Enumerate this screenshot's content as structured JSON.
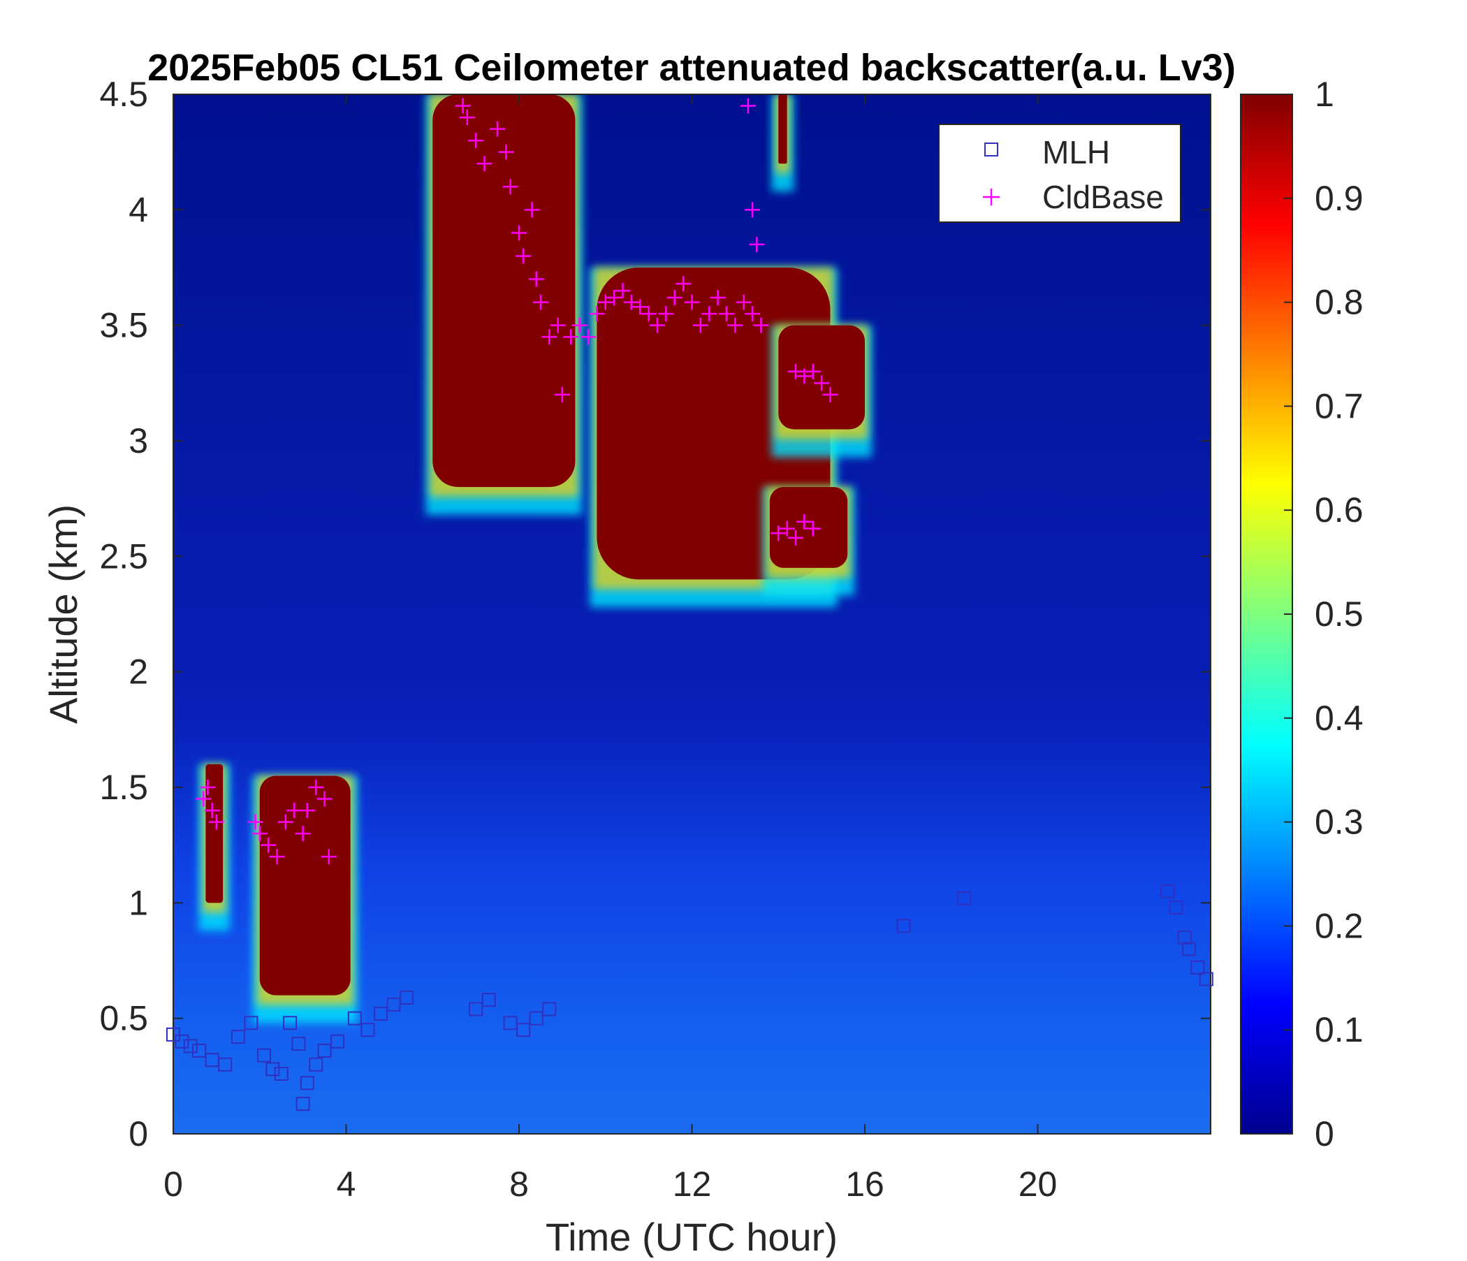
{
  "chart_data": {
    "type": "heatmap",
    "title": "2025Feb05 CL51 Ceilometer attenuated backscatter(a.u. Lv3)",
    "xlabel": "Time (UTC hour)",
    "ylabel": "Altitude (km)",
    "xlim": [
      0,
      24
    ],
    "ylim": [
      0,
      4.5
    ],
    "x_ticks": [
      "0",
      "4",
      "8",
      "12",
      "16",
      "20"
    ],
    "y_ticks": [
      "0",
      "0.5",
      "1",
      "1.5",
      "2",
      "2.5",
      "3",
      "3.5",
      "4",
      "4.5"
    ],
    "colorbar": {
      "range": [
        0,
        1
      ],
      "ticks": [
        "0",
        "0.1",
        "0.2",
        "0.3",
        "0.4",
        "0.5",
        "0.6",
        "0.7",
        "0.8",
        "0.9",
        "1"
      ],
      "colormap": "jet"
    },
    "legend": {
      "position": "top-right",
      "entries": [
        {
          "label": "MLH",
          "marker": "square",
          "color": "#3030c0"
        },
        {
          "label": "CldBase",
          "marker": "plus",
          "color": "#ff00ff"
        }
      ]
    },
    "grid": false,
    "backscatter_regions": [
      {
        "x": [
          0.75,
          1.15
        ],
        "y": [
          1.0,
          1.6
        ],
        "value": 1.0
      },
      {
        "x": [
          2.0,
          4.1
        ],
        "y": [
          0.6,
          1.55
        ],
        "value": 1.0
      },
      {
        "x": [
          6.0,
          9.3
        ],
        "y": [
          2.8,
          4.5
        ],
        "value": 1.0
      },
      {
        "x": [
          9.8,
          15.2
        ],
        "y": [
          2.4,
          3.75
        ],
        "value": 1.0
      },
      {
        "x": [
          13.8,
          15.6
        ],
        "y": [
          2.45,
          2.8
        ],
        "value": 1.0
      },
      {
        "x": [
          14.0,
          16.0
        ],
        "y": [
          3.05,
          3.5
        ],
        "value": 1.0
      },
      {
        "x": [
          14.0,
          14.2
        ],
        "y": [
          4.2,
          4.5
        ],
        "value": 1.0
      }
    ],
    "background_levels": [
      {
        "y": [
          0,
          0.5
        ],
        "value": 0.17
      },
      {
        "y": [
          0.5,
          1.1
        ],
        "value": 0.13
      },
      {
        "y": [
          1.1,
          4.5
        ],
        "value": 0.04
      }
    ],
    "series": [
      {
        "name": "MLH",
        "marker": "square",
        "x": [
          0.0,
          0.2,
          0.4,
          0.6,
          0.9,
          1.2,
          1.5,
          1.8,
          2.1,
          2.3,
          2.5,
          2.7,
          2.9,
          3.0,
          3.1,
          3.3,
          3.5,
          3.8,
          4.2,
          4.5,
          4.8,
          5.1,
          5.4,
          7.0,
          7.3,
          7.8,
          8.1,
          8.4,
          8.7,
          16.9,
          18.3,
          23.0,
          23.2,
          23.4,
          23.5,
          23.7,
          23.9
        ],
        "y": [
          0.43,
          0.4,
          0.38,
          0.36,
          0.32,
          0.3,
          0.42,
          0.48,
          0.34,
          0.28,
          0.26,
          0.48,
          0.39,
          0.13,
          0.22,
          0.3,
          0.36,
          0.4,
          0.5,
          0.45,
          0.52,
          0.56,
          0.59,
          0.54,
          0.58,
          0.48,
          0.45,
          0.5,
          0.54,
          0.9,
          1.02,
          1.05,
          0.98,
          0.85,
          0.8,
          0.72,
          0.67
        ]
      },
      {
        "name": "CldBase",
        "marker": "plus",
        "x": [
          0.7,
          0.8,
          0.9,
          1.0,
          1.9,
          2.0,
          2.2,
          2.4,
          2.6,
          2.8,
          3.0,
          3.1,
          3.3,
          3.5,
          3.6,
          6.7,
          6.8,
          7.0,
          7.2,
          7.5,
          7.7,
          7.8,
          8.0,
          8.1,
          8.3,
          8.4,
          8.5,
          8.7,
          8.9,
          9.0,
          9.2,
          9.4,
          9.6,
          9.8,
          10.0,
          10.2,
          10.4,
          10.6,
          10.8,
          11.0,
          11.2,
          11.4,
          11.6,
          11.8,
          12.0,
          12.2,
          12.4,
          12.6,
          12.8,
          13.0,
          13.2,
          13.4,
          13.6,
          14.0,
          14.2,
          14.4,
          14.6,
          14.8,
          14.4,
          14.6,
          14.8,
          15.0,
          15.2,
          13.3,
          13.4,
          13.5
        ],
        "y": [
          1.45,
          1.5,
          1.4,
          1.35,
          1.35,
          1.3,
          1.25,
          1.2,
          1.35,
          1.4,
          1.3,
          1.4,
          1.5,
          1.45,
          1.2,
          4.45,
          4.4,
          4.3,
          4.2,
          4.35,
          4.25,
          4.1,
          3.9,
          3.8,
          4.0,
          3.7,
          3.6,
          3.45,
          3.5,
          3.2,
          3.45,
          3.5,
          3.45,
          3.55,
          3.6,
          3.62,
          3.65,
          3.6,
          3.58,
          3.55,
          3.5,
          3.55,
          3.62,
          3.68,
          3.6,
          3.5,
          3.55,
          3.62,
          3.55,
          3.5,
          3.6,
          3.55,
          3.5,
          2.6,
          2.62,
          2.58,
          2.65,
          2.62,
          3.3,
          3.28,
          3.3,
          3.25,
          3.2,
          4.45,
          4.0,
          3.85
        ]
      }
    ]
  }
}
